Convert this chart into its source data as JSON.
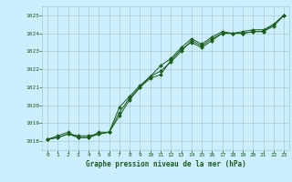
{
  "title": "Graphe pression niveau de la mer (hPa)",
  "bg_color": "#cceeff",
  "plot_bg_color": "#cceeff",
  "grid_color": "#aacccc",
  "line_color": "#1a5c1a",
  "marker_color": "#1a5c1a",
  "xlim": [
    -0.5,
    23.5
  ],
  "ylim": [
    1017.5,
    1025.5
  ],
  "xticks": [
    0,
    1,
    2,
    3,
    4,
    5,
    6,
    7,
    8,
    9,
    10,
    11,
    12,
    13,
    14,
    15,
    16,
    17,
    18,
    19,
    20,
    21,
    22,
    23
  ],
  "yticks": [
    1018,
    1019,
    1020,
    1021,
    1022,
    1023,
    1024,
    1025
  ],
  "series": [
    [
      1018.1,
      1018.2,
      1018.4,
      1018.2,
      1018.2,
      1018.4,
      1018.5,
      1019.6,
      1020.4,
      1021.0,
      1021.5,
      1021.7,
      1022.5,
      1023.1,
      1023.5,
      1023.2,
      1023.6,
      1024.0,
      1024.0,
      1024.0,
      1024.1,
      1024.1,
      1024.5,
      1025.0
    ],
    [
      1018.1,
      1018.2,
      1018.4,
      1018.3,
      1018.3,
      1018.4,
      1018.5,
      1019.4,
      1020.3,
      1021.0,
      1021.6,
      1021.9,
      1022.4,
      1023.0,
      1023.6,
      1023.3,
      1023.7,
      1024.0,
      1024.0,
      1024.0,
      1024.1,
      1024.1,
      1024.4,
      1025.0
    ],
    [
      1018.1,
      1018.3,
      1018.5,
      1018.2,
      1018.2,
      1018.5,
      1018.5,
      1019.9,
      1020.5,
      1021.1,
      1021.6,
      1022.2,
      1022.6,
      1023.2,
      1023.7,
      1023.4,
      1023.8,
      1024.1,
      1024.0,
      1024.1,
      1024.2,
      1024.2,
      1024.5,
      1025.0
    ]
  ]
}
